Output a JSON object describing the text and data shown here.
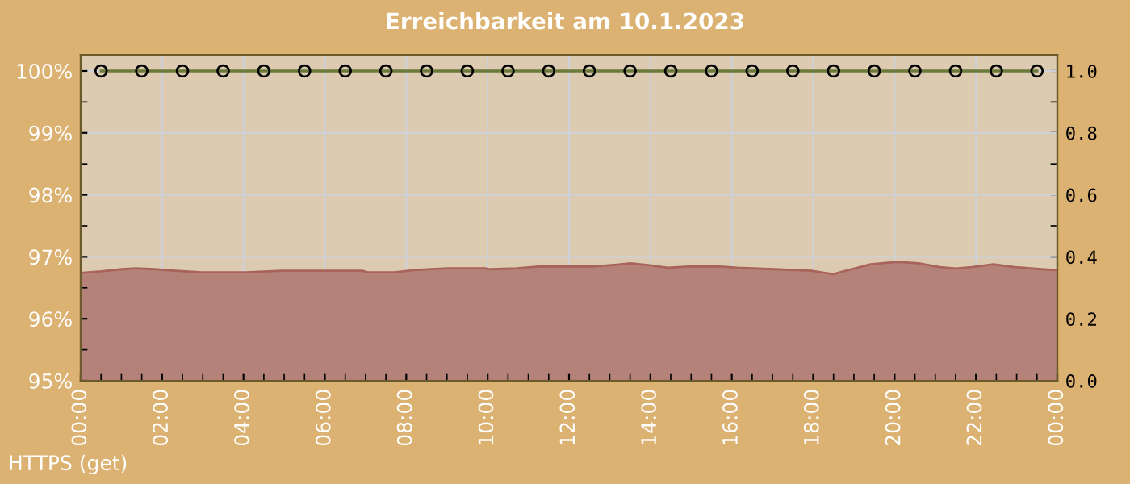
{
  "chart_data": {
    "type": "line",
    "title": "Erreichbarkeit am 10.1.2023",
    "xlim": [
      0,
      24
    ],
    "xticks": [
      {
        "value": 0,
        "label": "00:00"
      },
      {
        "value": 2,
        "label": "02:00"
      },
      {
        "value": 4,
        "label": "04:00"
      },
      {
        "value": 6,
        "label": "06:00"
      },
      {
        "value": 8,
        "label": "08:00"
      },
      {
        "value": 10,
        "label": "10:00"
      },
      {
        "value": 12,
        "label": "12:00"
      },
      {
        "value": 14,
        "label": "14:00"
      },
      {
        "value": 16,
        "label": "16:00"
      },
      {
        "value": 18,
        "label": "18:00"
      },
      {
        "value": 20,
        "label": "20:00"
      },
      {
        "value": 22,
        "label": "22:00"
      },
      {
        "value": 24,
        "label": "00:00"
      }
    ],
    "ylim": [
      95,
      100.26
    ],
    "yticks": [
      {
        "value": 95,
        "label": "95%"
      },
      {
        "value": 96,
        "label": "96%"
      },
      {
        "value": 97,
        "label": "97%"
      },
      {
        "value": 98,
        "label": "98%"
      },
      {
        "value": 99,
        "label": "99%"
      },
      {
        "value": 100,
        "label": "100%"
      }
    ],
    "y2lim": [
      0,
      1.052
    ],
    "y2ticks": [
      {
        "value": 0,
        "label": "0.0"
      },
      {
        "value": 0.2,
        "label": "0.2"
      },
      {
        "value": 0.4,
        "label": "0.4"
      },
      {
        "value": 0.6,
        "label": "0.6"
      },
      {
        "value": 0.8,
        "label": "0.8"
      },
      {
        "value": 1.0,
        "label": "1.0"
      }
    ],
    "grid": true,
    "legend": false,
    "series": [
      {
        "type": "area",
        "axis": "y2",
        "color": "#b5827a",
        "x": [
          0,
          0.5,
          1.02,
          1.35,
          1.81,
          2.33,
          2.99,
          4.04,
          4.95,
          6.0,
          6.92,
          7.05,
          7.71,
          8.23,
          9.02,
          9.93,
          10.07,
          10.72,
          11.25,
          11.8,
          12.59,
          13.11,
          13.51,
          14.03,
          14.42,
          14.95,
          15.73,
          16.13,
          17.04,
          17.96,
          18.49,
          18.88,
          19.41,
          20.06,
          20.59,
          21.11,
          21.51,
          21.9,
          22.43,
          22.95,
          23.61,
          24.0
        ],
        "values": [
          0.348,
          0.353,
          0.36,
          0.363,
          0.36,
          0.355,
          0.35,
          0.35,
          0.355,
          0.355,
          0.355,
          0.35,
          0.35,
          0.358,
          0.363,
          0.363,
          0.36,
          0.363,
          0.369,
          0.369,
          0.369,
          0.374,
          0.379,
          0.372,
          0.365,
          0.369,
          0.369,
          0.365,
          0.36,
          0.355,
          0.344,
          0.358,
          0.376,
          0.384,
          0.379,
          0.367,
          0.362,
          0.367,
          0.376,
          0.367,
          0.36,
          0.357
        ]
      },
      {
        "color": "#6b7a3a",
        "marker": "circle",
        "x": [
          0.5,
          1.5,
          2.5,
          3.5,
          4.5,
          5.5,
          6.5,
          7.5,
          8.5,
          9.5,
          10.5,
          11.5,
          12.5,
          13.5,
          14.5,
          15.5,
          16.5,
          17.5,
          18.5,
          19.5,
          20.5,
          21.5,
          22.5,
          23.5
        ],
        "values": [
          100,
          100,
          100,
          100,
          100,
          100,
          100,
          100,
          100,
          100,
          100,
          100,
          100,
          100,
          100,
          100,
          100,
          100,
          100,
          100,
          100,
          100,
          100,
          100
        ]
      }
    ],
    "annotations": [
      "HTTPS (get)"
    ]
  }
}
